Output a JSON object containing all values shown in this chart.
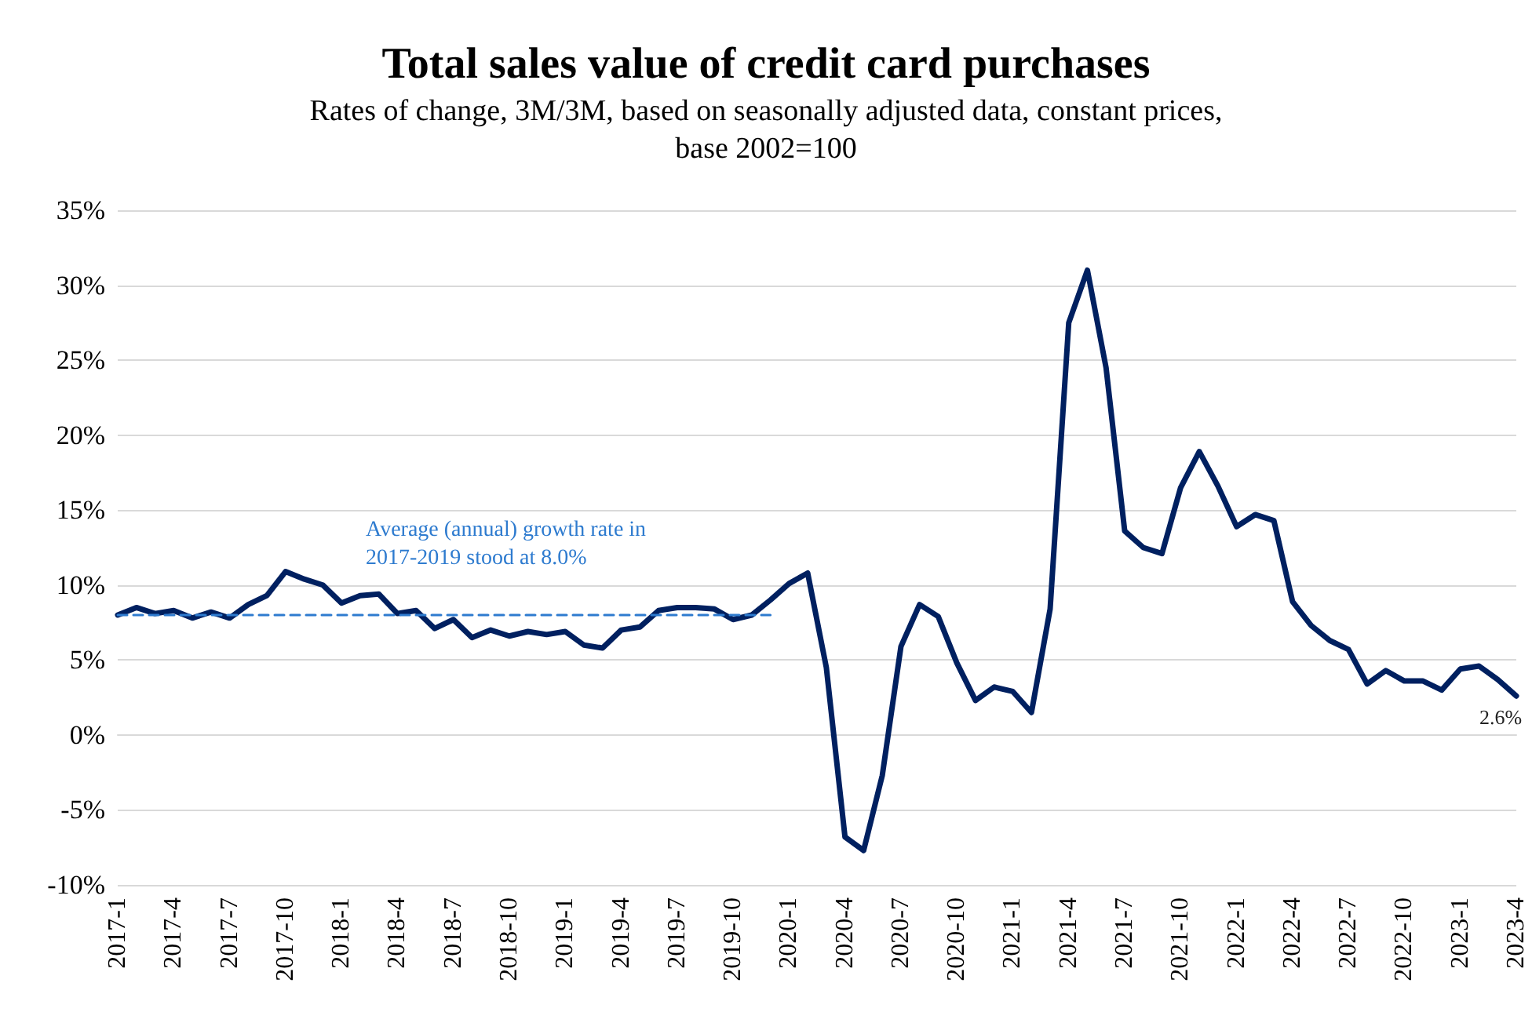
{
  "chart_data": {
    "type": "line",
    "title": "Total sales value of credit card purchases",
    "subtitle": "Rates of change, 3M/3M, based on seasonally adjusted data, constant prices,\nbase 2002=100",
    "categories": [
      "2017-1",
      null,
      null,
      "2017-4",
      null,
      null,
      "2017-7",
      null,
      null,
      "2017-10",
      null,
      null,
      "2018-1",
      null,
      null,
      "2018-4",
      null,
      null,
      "2018-7",
      null,
      null,
      "2018-10",
      null,
      null,
      "2019-1",
      null,
      null,
      "2019-4",
      null,
      null,
      "2019-7",
      null,
      null,
      "2019-10",
      null,
      null,
      "2020-1",
      null,
      null,
      "2020-4",
      null,
      null,
      "2020-7",
      null,
      null,
      "2020-10",
      null,
      null,
      "2021-1",
      null,
      null,
      "2021-4",
      null,
      null,
      "2021-7",
      null,
      null,
      "2021-10",
      null,
      null,
      "2022-1",
      null,
      null,
      "2022-4",
      null,
      null,
      "2022-7",
      null,
      null,
      "2022-10",
      null,
      null,
      "2023-1",
      null,
      null,
      "2023-4"
    ],
    "series": [
      {
        "color": "#002060",
        "values": [
          8.0,
          8.5,
          8.1,
          8.3,
          7.8,
          8.2,
          7.8,
          8.7,
          9.3,
          10.9,
          10.4,
          10.0,
          8.8,
          9.3,
          9.4,
          8.1,
          8.3,
          7.1,
          7.7,
          6.5,
          7.0,
          6.6,
          6.9,
          6.7,
          6.9,
          6.0,
          5.8,
          7.0,
          7.2,
          8.3,
          8.5,
          8.5,
          8.4,
          7.7,
          8.0,
          9.0,
          10.1,
          10.8,
          4.5,
          -6.8,
          -7.7,
          -2.7,
          5.9,
          8.7,
          7.9,
          4.8,
          2.3,
          3.2,
          2.9,
          1.5,
          8.4,
          27.5,
          31.0,
          24.5,
          13.6,
          12.5,
          12.1,
          16.5,
          18.9,
          16.6,
          13.9,
          14.7,
          14.3,
          8.9,
          7.3,
          6.3,
          5.7,
          3.4,
          4.3,
          3.6,
          3.6,
          3.0,
          4.4,
          4.6,
          3.7,
          2.6
        ],
        "value_labels": [
          null,
          null,
          null,
          null,
          null,
          null,
          null,
          null,
          null,
          null,
          null,
          null,
          null,
          null,
          null,
          null,
          null,
          null,
          null,
          null,
          null,
          null,
          null,
          null,
          null,
          null,
          null,
          null,
          null,
          null,
          null,
          null,
          null,
          null,
          null,
          null,
          null,
          null,
          null,
          null,
          null,
          null,
          null,
          null,
          null,
          null,
          null,
          null,
          null,
          null,
          null,
          null,
          null,
          null,
          null,
          null,
          null,
          null,
          null,
          null,
          null,
          null,
          null,
          null,
          null,
          null,
          null,
          null,
          null,
          null,
          null,
          null,
          null,
          null,
          null,
          "2.6%"
        ]
      },
      {
        "color": "#2e7bcf",
        "line_style": "dashed",
        "values": [
          8.0,
          8.0,
          8.0,
          8.0,
          8.0,
          8.0,
          8.0,
          8.0,
          8.0,
          8.0,
          8.0,
          8.0,
          8.0,
          8.0,
          8.0,
          8.0,
          8.0,
          8.0,
          8.0,
          8.0,
          8.0,
          8.0,
          8.0,
          8.0,
          8.0,
          8.0,
          8.0,
          8.0,
          8.0,
          8.0,
          8.0,
          8.0,
          8.0,
          8.0,
          8.0,
          8.0,
          null,
          null,
          null,
          null,
          null,
          null,
          null,
          null,
          null,
          null,
          null,
          null,
          null,
          null,
          null,
          null,
          null,
          null,
          null,
          null,
          null,
          null,
          null,
          null,
          null,
          null,
          null,
          null,
          null,
          null,
          null,
          null,
          null,
          null,
          null,
          null,
          null,
          null,
          null,
          null
        ]
      }
    ],
    "annotations": [
      "Average (annual) growth rate in 2017-2019 stood at 8.0%"
    ],
    "ylim": [
      -10,
      35
    ],
    "yticks": [
      {
        "value": -10,
        "label": "-10%"
      },
      {
        "value": -5,
        "label": "-5%"
      },
      {
        "value": 0,
        "label": "0%"
      },
      {
        "value": 5,
        "label": "5%"
      },
      {
        "value": 10,
        "label": "10%"
      },
      {
        "value": 15,
        "label": "15%"
      },
      {
        "value": 20,
        "label": "20%"
      },
      {
        "value": 25,
        "label": "25%"
      },
      {
        "value": 30,
        "label": "30%"
      },
      {
        "value": 35,
        "label": "35%"
      }
    ],
    "grid": "y",
    "marker": "none",
    "line_style": "solid"
  }
}
